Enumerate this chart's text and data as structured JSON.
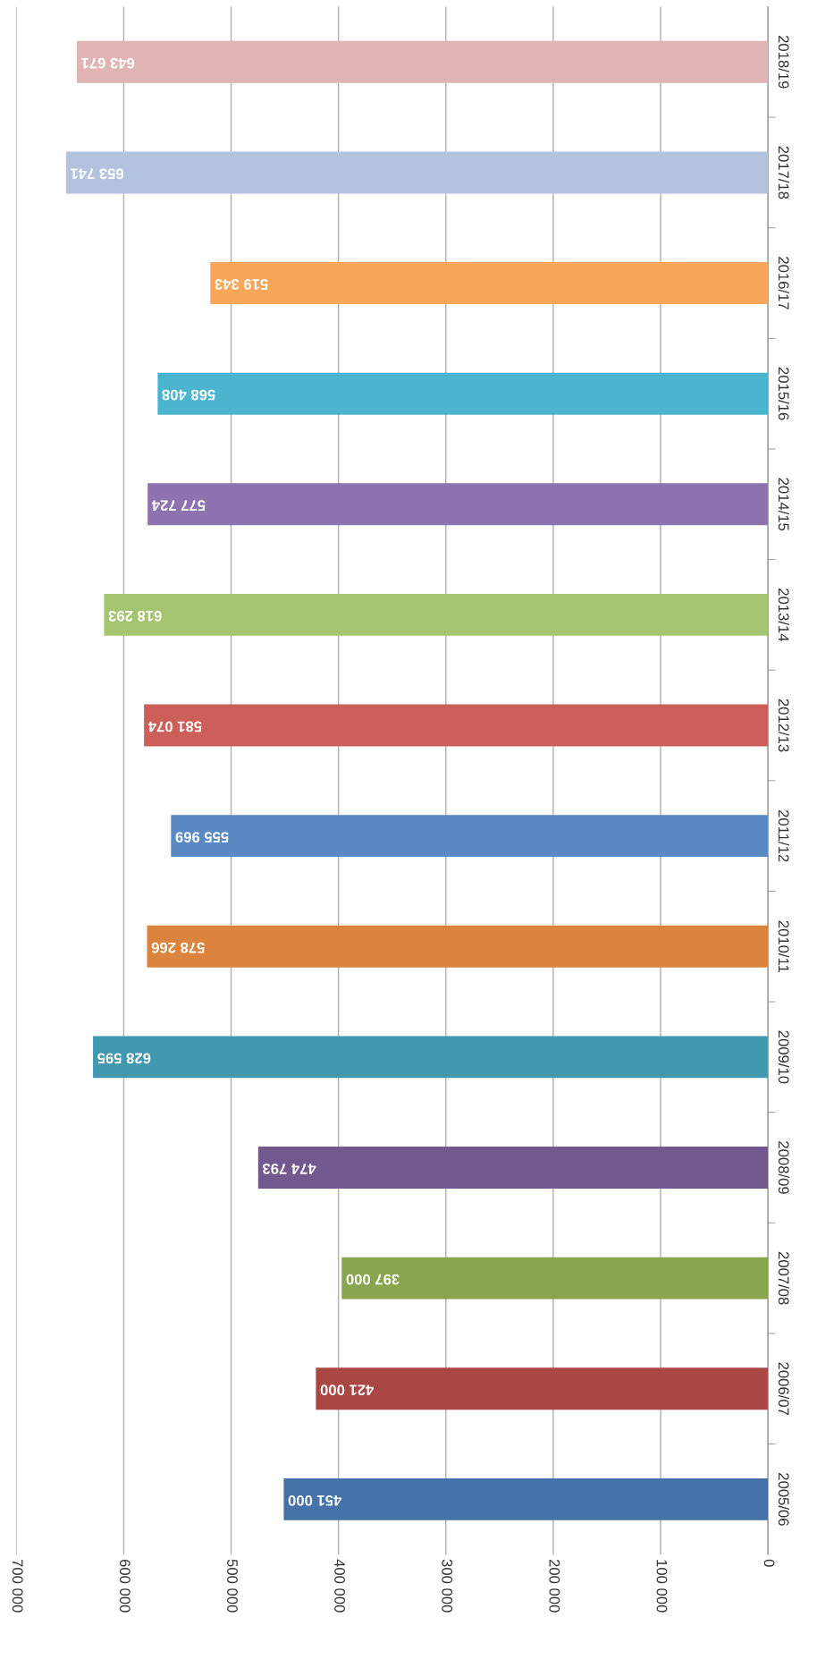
{
  "chart_data": {
    "type": "bar",
    "orientation": "horizontal",
    "categories": [
      "2018/19",
      "2017/18",
      "2016/17",
      "2015/16",
      "2014/15",
      "2013/14",
      "2012/13",
      "2011/12",
      "2010/11",
      "2009/10",
      "2008/09",
      "2007/08",
      "2006/07",
      "2005/06"
    ],
    "values": [
      643671,
      653741,
      519343,
      568408,
      577724,
      618293,
      581074,
      555969,
      578266,
      628595,
      474793,
      397000,
      421000,
      451000
    ],
    "value_labels": [
      "643 671",
      "653 741",
      "519 343",
      "568 408",
      "577 724",
      "618 293",
      "581 074",
      "555 969",
      "578 266",
      "628 595",
      "474 793",
      "397 000",
      "421 000",
      "451 000"
    ],
    "colors": [
      "#e0b4b4",
      "#b3c3de",
      "#f9a65a",
      "#4bb5d0",
      "#8e73b0",
      "#a5c46f",
      "#cd5f5a",
      "#5a8ac6",
      "#db843d",
      "#4198af",
      "#71588f",
      "#89a54e",
      "#aa4643",
      "#4572a7"
    ],
    "xlim": [
      700000,
      0
    ],
    "xticks": [
      {
        "value": 700000,
        "label": "700 000"
      },
      {
        "value": 600000,
        "label": "600 000"
      },
      {
        "value": 500000,
        "label": "500 000"
      },
      {
        "value": 400000,
        "label": "400 000"
      },
      {
        "value": 300000,
        "label": "300 000"
      },
      {
        "value": 200000,
        "label": "200 000"
      },
      {
        "value": 100000,
        "label": "100 000"
      },
      0
    ],
    "grid": "x"
  }
}
